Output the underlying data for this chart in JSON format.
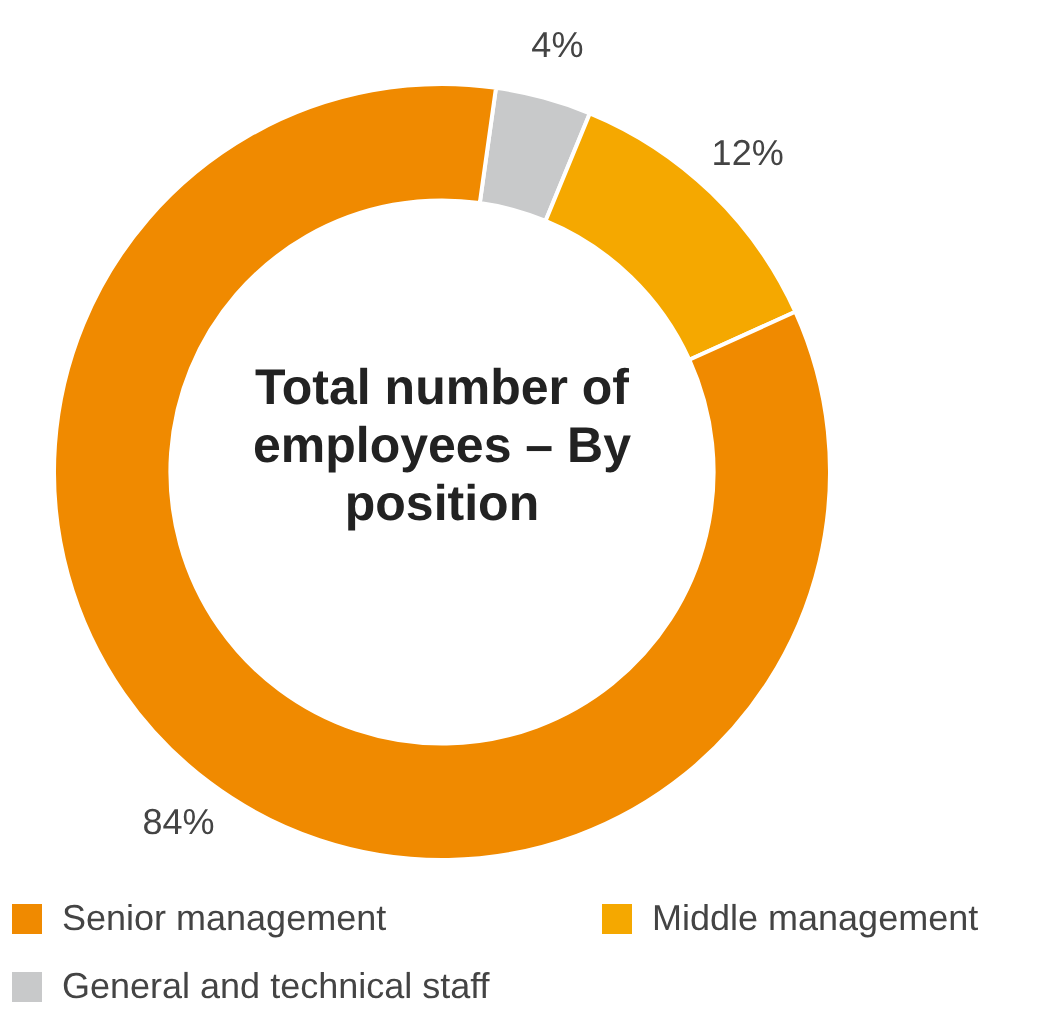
{
  "chart_data": {
    "type": "donut",
    "title": "Total number of employees – By position",
    "categories": [
      "General and technical staff",
      "Middle management",
      "Senior management"
    ],
    "values": [
      4,
      12,
      84
    ],
    "colors": [
      "#c8c9ca",
      "#f5a800",
      "#f08a00"
    ],
    "value_labels": [
      "4%",
      "12%",
      "84%"
    ],
    "legend": "bottom"
  }
}
